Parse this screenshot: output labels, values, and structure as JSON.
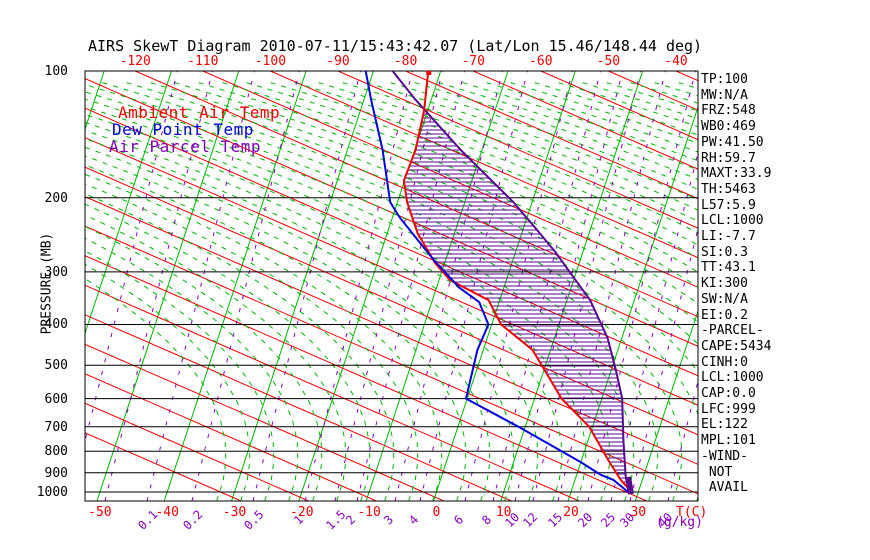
{
  "title": "AIRS SkewT Diagram 2010-07-11/15:43:42.07 (Lat/Lon 15.46/148.44 deg)",
  "colors": {
    "background": "#ffffff",
    "ambient": "#f00000",
    "dewpoint": "#0000dd",
    "parcel": "#56088f",
    "isotherm_green": "#00b400",
    "dry_adiabat_red": "#f00000",
    "moist_adiabat_green": "#00b400",
    "mixing_ratio_purple": "#8800bb",
    "axis_black": "#000000"
  },
  "legend": {
    "ambient_label": "Ambient Air Temp",
    "dewpoint_label": "Dew Point Temp",
    "parcel_label": "Air Parcel Temp"
  },
  "axes": {
    "pressure": {
      "label": "PRESSURE (MB)",
      "ticks": [
        100,
        200,
        300,
        400,
        500,
        600,
        700,
        800,
        900,
        1000
      ],
      "scale": "log",
      "range_mb": [
        100,
        1050
      ]
    },
    "temp_bottom": {
      "label": "T(C)",
      "ticks": [
        -50,
        -40,
        -30,
        -20,
        -10,
        0,
        10,
        20,
        30
      ]
    },
    "temp_top": {
      "ticks": [
        -120,
        -110,
        -100,
        -90,
        -80,
        -70,
        -60,
        -50,
        -40
      ]
    },
    "mixing_ratio": {
      "label": "(g/kg)",
      "ticks": [
        {
          "label": "0.1",
          "x": 147
        },
        {
          "label": "0.2",
          "x": 192
        },
        {
          "label": "0.5",
          "x": 253
        },
        {
          "label": "1",
          "x": 305
        },
        {
          "label": "1.5",
          "x": 335
        },
        {
          "label": "2",
          "x": 357
        },
        {
          "label": "3",
          "x": 395
        },
        {
          "label": "4",
          "x": 420
        },
        {
          "label": "6",
          "x": 465
        },
        {
          "label": "8",
          "x": 493
        },
        {
          "label": "10",
          "x": 515
        },
        {
          "label": "12",
          "x": 533
        },
        {
          "label": "15",
          "x": 558
        },
        {
          "label": "20",
          "x": 588
        },
        {
          "label": "25",
          "x": 611
        },
        {
          "label": "30",
          "x": 630
        },
        {
          "label": "40",
          "x": 668
        }
      ]
    }
  },
  "stats_panel": {
    "lines": [
      "TP:100",
      "MW:N/A",
      "FRZ:548",
      "WB0:469",
      "PW:41.50",
      "RH:59.7",
      "MAXT:33.9",
      "TH:5463",
      "L57:5.9",
      "LCL:1000",
      "LI:-7.7",
      "SI:0.3",
      "TT:43.1",
      "KI:300",
      "SW:N/A",
      "EI:0.2",
      "-PARCEL-",
      "CAPE:5434",
      "CINH:0",
      "LCL:1000",
      "CAP:0.0",
      "LFC:999",
      "EL:122",
      "MPL:101",
      "-WIND-",
      " NOT",
      " AVAIL"
    ]
  },
  "chart_data": {
    "type": "line",
    "subtype": "skew-t log-p sounding",
    "xlabel": "T(C)",
    "ylabel": "PRESSURE (MB)",
    "pressure_range_mb": [
      100,
      1000
    ],
    "temp_axis_bottom_c": [
      -50,
      30
    ],
    "temp_axis_top_c": [
      -120,
      -40
    ],
    "grid": "skew-t background (isotherms, dry/moist adiabats, mixing-ratio lines)",
    "cape_hatch_between": [
      "Ambient Air Temp",
      "Air Parcel Temp"
    ],
    "series": [
      {
        "name": "Ambient Air Temp",
        "color": "#f00000",
        "points_p_t": [
          [
            1000,
            29.0
          ],
          [
            936,
            25.2
          ],
          [
            837,
            19.6
          ],
          [
            700,
            10.9
          ],
          [
            600,
            1.7
          ],
          [
            460,
            -11.4
          ],
          [
            400,
            -20.7
          ],
          [
            350,
            -27.0
          ],
          [
            314,
            -36.3
          ],
          [
            286,
            -41.6
          ],
          [
            243,
            -49.6
          ],
          [
            205,
            -56.8
          ],
          [
            182,
            -61.2
          ],
          [
            154,
            -65.0
          ],
          [
            124,
            -70.9
          ],
          [
            100,
            -77.4
          ]
        ]
      },
      {
        "name": "Dew Point Temp",
        "color": "#0000dd",
        "points_p_t": [
          [
            1000,
            28.5
          ],
          [
            936,
            24.1
          ],
          [
            910,
            21.3
          ],
          [
            851,
            16.2
          ],
          [
            700,
            0.4
          ],
          [
            600,
            -12.5
          ],
          [
            460,
            -19.6
          ],
          [
            400,
            -22.6
          ],
          [
            354,
            -28.0
          ],
          [
            327,
            -33.6
          ],
          [
            281,
            -42.4
          ],
          [
            223,
            -55.1
          ],
          [
            205,
            -59.3
          ],
          [
            154,
            -69.9
          ],
          [
            117,
            -80.7
          ],
          [
            100,
            -86.7
          ]
        ]
      },
      {
        "name": "Air Parcel Temp",
        "color": "#56088f",
        "points_p_t": [
          [
            1000,
            29.0
          ],
          [
            929,
            25.7
          ],
          [
            753,
            18.4
          ],
          [
            600,
            10.7
          ],
          [
            512,
            4.5
          ],
          [
            430,
            -2.5
          ],
          [
            350,
            -11.9
          ],
          [
            269,
            -25.8
          ],
          [
            235,
            -33.3
          ],
          [
            205,
            -41.0
          ],
          [
            154,
            -58.3
          ],
          [
            117,
            -74.1
          ],
          [
            100,
            -82.7
          ]
        ]
      }
    ]
  }
}
